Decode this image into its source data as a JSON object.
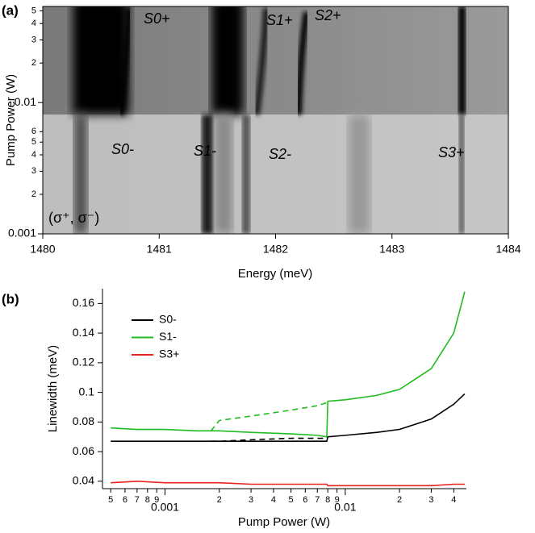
{
  "chart_data": [
    {
      "type": "heatmap",
      "title": "(a)",
      "x_label": "Energy (meV)",
      "y_label": "Pump Power (W)",
      "xlim": [
        1480,
        1484
      ],
      "xticks": [
        1480,
        1481,
        1482,
        1483,
        1484
      ],
      "ylim": [
        0.001,
        0.054
      ],
      "log_y": true,
      "yticks": [
        0.001,
        {
          "value": 0.002,
          "label": "2"
        },
        {
          "value": 0.003,
          "label": "3"
        },
        {
          "value": 0.004,
          "label": "4"
        },
        {
          "value": 0.005,
          "label": "5"
        },
        {
          "value": 0.006,
          "label": "6"
        },
        0.01,
        {
          "value": 0.02,
          "label": "2"
        },
        {
          "value": 0.03,
          "label": "3"
        },
        {
          "value": 0.04,
          "label": "4"
        },
        {
          "value": 0.05,
          "label": "5"
        }
      ],
      "annotations": [
        "S0+",
        "S1+",
        "S2+",
        "S0-",
        "S1-",
        "S2-",
        "S3+",
        "(σ⁺, σ⁻)"
      ]
    },
    {
      "type": "line",
      "title": "(b)",
      "x_label": "Pump Power (W)",
      "y_label": "Linewidth (meV)",
      "xlim": [
        0.00045,
        0.047
      ],
      "log_x": true,
      "ylim": [
        0.035,
        0.17
      ],
      "yticks": [
        0.04,
        0.06,
        0.08,
        0.1,
        0.12,
        0.14,
        0.16
      ],
      "xticks": [
        {
          "value": 0.0005,
          "label": "5"
        },
        {
          "value": 0.0006,
          "label": "6"
        },
        {
          "value": 0.0007,
          "label": "7"
        },
        {
          "value": 0.0008,
          "label": "8"
        },
        {
          "value": 0.0009,
          "label": "9"
        },
        0.001,
        {
          "value": 0.002,
          "label": "2"
        },
        {
          "value": 0.003,
          "label": "3"
        },
        {
          "value": 0.004,
          "label": "4"
        },
        {
          "value": 0.005,
          "label": "5"
        },
        {
          "value": 0.006,
          "label": "6"
        },
        {
          "value": 0.007,
          "label": "7"
        },
        {
          "value": 0.008,
          "label": "8"
        },
        {
          "value": 0.009,
          "label": "9"
        },
        0.01,
        {
          "value": 0.02,
          "label": "2"
        },
        {
          "value": 0.03,
          "label": "3"
        },
        {
          "value": 0.04,
          "label": "4"
        }
      ],
      "x": [
        0.0005,
        0.0007,
        0.001,
        0.0015,
        0.0018,
        0.002,
        0.003,
        0.005,
        0.007,
        0.0079,
        0.008,
        0.01,
        0.015,
        0.02,
        0.03,
        0.04,
        0.046
      ],
      "series": [
        {
          "name": "S0-",
          "color": "#000000",
          "values": [
            0.067,
            0.067,
            0.067,
            0.067,
            0.067,
            0.067,
            0.067,
            0.067,
            0.067,
            0.067,
            0.07,
            0.071,
            0.073,
            0.075,
            0.082,
            0.092,
            0.099
          ],
          "dashed_values": [
            null,
            null,
            null,
            null,
            0.067,
            0.067,
            0.068,
            0.069,
            0.069,
            0.069,
            0.07,
            null,
            null,
            null,
            null,
            null,
            null
          ]
        },
        {
          "name": "S1-",
          "color": "#22bb22",
          "values": [
            0.076,
            0.075,
            0.075,
            0.074,
            0.074,
            0.074,
            0.073,
            0.072,
            0.071,
            0.07,
            0.094,
            0.095,
            0.098,
            0.102,
            0.116,
            0.14,
            0.168
          ],
          "dashed_values": [
            null,
            null,
            null,
            null,
            0.074,
            0.081,
            0.084,
            0.088,
            0.091,
            0.093,
            0.094,
            null,
            null,
            null,
            null,
            null,
            null
          ]
        },
        {
          "name": "S3+",
          "color": "#e8231e",
          "values": [
            0.039,
            0.04,
            0.039,
            0.039,
            0.039,
            0.039,
            0.038,
            0.038,
            0.038,
            0.038,
            0.037,
            0.037,
            0.037,
            0.037,
            0.037,
            0.038,
            0.038
          ]
        }
      ]
    }
  ]
}
